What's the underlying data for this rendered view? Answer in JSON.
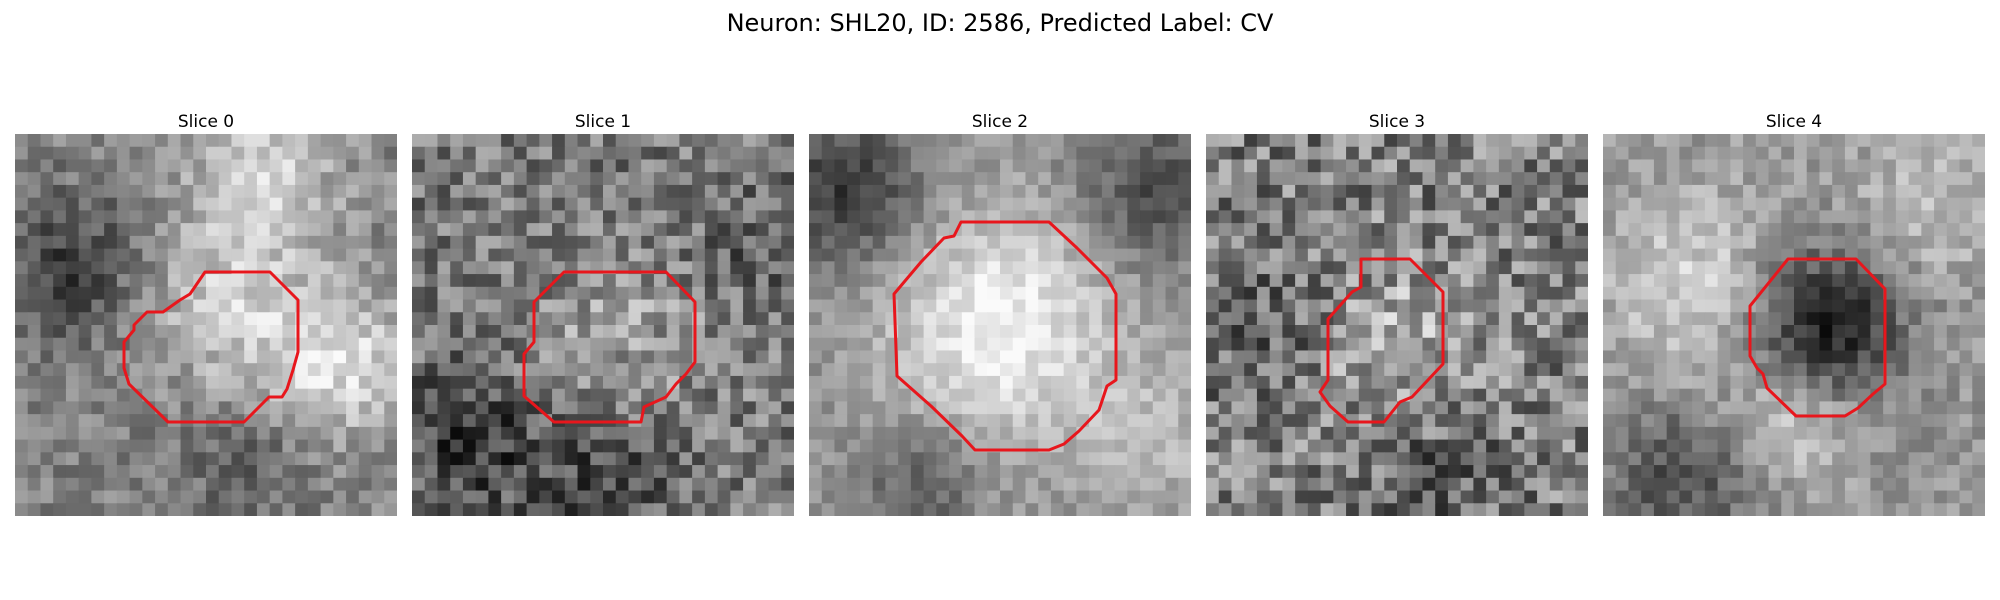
{
  "figure": {
    "title": "Neuron: SHL20, ID: 2586, Predicted Label: CV"
  },
  "panels": [
    {
      "label": "Slice 0"
    },
    {
      "label": "Slice 1"
    },
    {
      "label": "Slice 2"
    },
    {
      "label": "Slice 3"
    },
    {
      "label": "Slice 4"
    }
  ],
  "colors": {
    "contour": "#e8161c",
    "colormap": "gray"
  }
}
